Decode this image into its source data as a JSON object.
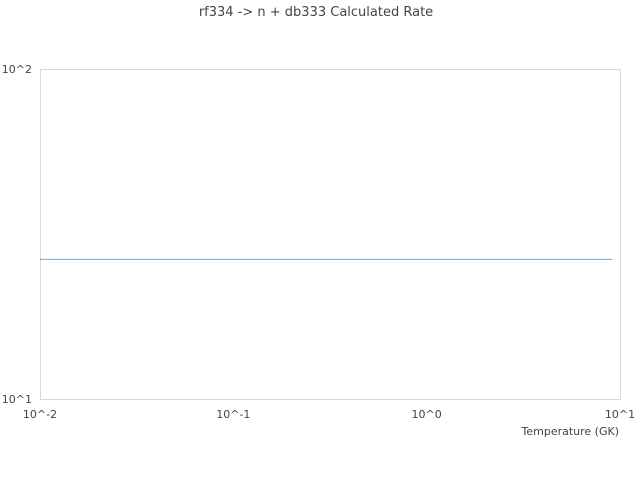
{
  "chart_data": {
    "type": "line",
    "title": "rf334 -> n + db333 Calculated Rate",
    "xlabel": "Temperature (GK)",
    "ylabel": "",
    "x_scale": "log",
    "y_scale": "log",
    "xlim": [
      0.01,
      10
    ],
    "ylim": [
      10,
      100
    ],
    "x_tick_labels": [
      "10^-2",
      "10^-1",
      "10^0",
      "10^1"
    ],
    "y_tick_labels": [
      "10^1",
      "10^2"
    ],
    "grid": false,
    "series": [
      {
        "color": "#6fa8dc",
        "x": [
          0.01,
          9.1
        ],
        "y": [
          26.5,
          26.5
        ]
      }
    ]
  }
}
